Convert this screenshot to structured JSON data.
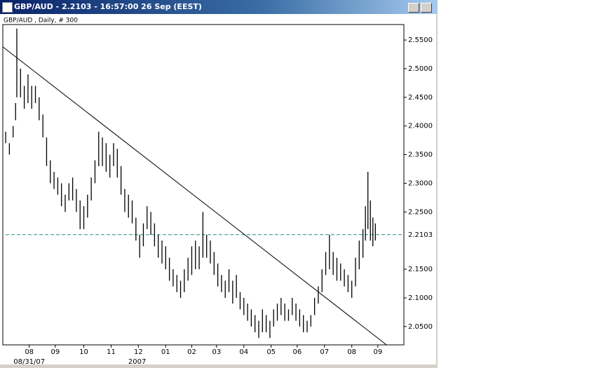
{
  "chart_data": {
    "type": "ohlc",
    "title": "GBP/AUD - 2.2103 - 16:57:00  26 Sep (EEST)",
    "subtitle": "GBP/AUD , Daily, # 300",
    "x": [
      0,
      3,
      6,
      8,
      9,
      12,
      15,
      18,
      21,
      24,
      27,
      30,
      33,
      36,
      39,
      42,
      45,
      48,
      51,
      54,
      57,
      60,
      63,
      66,
      69,
      72,
      75,
      78,
      81,
      84,
      87,
      90,
      93,
      96,
      99,
      102,
      105,
      108,
      111,
      114,
      117,
      120,
      123,
      126,
      129,
      132,
      135,
      138,
      141,
      144,
      147,
      150,
      153,
      156,
      159,
      162,
      165,
      168,
      171,
      174,
      177,
      180,
      183,
      186,
      189,
      192,
      195,
      198,
      201,
      204,
      207,
      210,
      213,
      216,
      219,
      222,
      225,
      228,
      231,
      234,
      237,
      240,
      243,
      246,
      249,
      252,
      255,
      258,
      261,
      264,
      267,
      270,
      273,
      276,
      279,
      282,
      285,
      288,
      290,
      292,
      294,
      296,
      298
    ],
    "high": [
      2.39,
      2.37,
      2.4,
      2.44,
      2.57,
      2.5,
      2.47,
      2.49,
      2.47,
      2.47,
      2.45,
      2.42,
      2.38,
      2.34,
      2.32,
      2.31,
      2.3,
      2.28,
      2.3,
      2.31,
      2.29,
      2.27,
      2.26,
      2.28,
      2.31,
      2.34,
      2.39,
      2.38,
      2.37,
      2.35,
      2.37,
      2.36,
      2.33,
      2.29,
      2.28,
      2.27,
      2.24,
      2.21,
      2.23,
      2.26,
      2.25,
      2.23,
      2.21,
      2.2,
      2.19,
      2.17,
      2.15,
      2.14,
      2.13,
      2.15,
      2.17,
      2.19,
      2.2,
      2.19,
      2.25,
      2.21,
      2.2,
      2.18,
      2.16,
      2.14,
      2.13,
      2.15,
      2.13,
      2.14,
      2.11,
      2.1,
      2.09,
      2.08,
      2.07,
      2.06,
      2.08,
      2.07,
      2.06,
      2.08,
      2.09,
      2.1,
      2.09,
      2.08,
      2.1,
      2.09,
      2.08,
      2.07,
      2.06,
      2.07,
      2.1,
      2.12,
      2.15,
      2.18,
      2.21,
      2.18,
      2.17,
      2.16,
      2.15,
      2.14,
      2.13,
      2.17,
      2.2,
      2.22,
      2.26,
      2.32,
      2.27,
      2.24,
      2.23
    ],
    "low": [
      2.37,
      2.35,
      2.38,
      2.41,
      2.45,
      2.45,
      2.43,
      2.44,
      2.43,
      2.44,
      2.41,
      2.38,
      2.33,
      2.3,
      2.29,
      2.28,
      2.26,
      2.25,
      2.27,
      2.27,
      2.25,
      2.22,
      2.22,
      2.24,
      2.27,
      2.3,
      2.33,
      2.33,
      2.32,
      2.31,
      2.33,
      2.31,
      2.28,
      2.25,
      2.24,
      2.23,
      2.2,
      2.17,
      2.19,
      2.22,
      2.21,
      2.19,
      2.17,
      2.16,
      2.15,
      2.13,
      2.12,
      2.11,
      2.1,
      2.11,
      2.13,
      2.14,
      2.15,
      2.15,
      2.17,
      2.17,
      2.16,
      2.14,
      2.12,
      2.11,
      2.1,
      2.11,
      2.09,
      2.1,
      2.08,
      2.07,
      2.06,
      2.05,
      2.04,
      2.03,
      2.04,
      2.04,
      2.03,
      2.05,
      2.06,
      2.07,
      2.06,
      2.06,
      2.07,
      2.06,
      2.05,
      2.04,
      2.04,
      2.05,
      2.07,
      2.09,
      2.11,
      2.14,
      2.15,
      2.14,
      2.13,
      2.13,
      2.12,
      2.11,
      2.1,
      2.12,
      2.15,
      2.17,
      2.2,
      2.22,
      2.2,
      2.19,
      2.2
    ],
    "color": "#000000",
    "xlim": [
      -2.3,
      321
    ],
    "xticks": [
      {
        "value": 19,
        "label": "08"
      },
      {
        "value": 40,
        "label": "09"
      },
      {
        "value": 63,
        "label": "10"
      },
      {
        "value": 85,
        "label": "11"
      },
      {
        "value": 107,
        "label": "12"
      },
      {
        "value": 129,
        "label": "01"
      },
      {
        "value": 150,
        "label": "02"
      },
      {
        "value": 170,
        "label": "03"
      },
      {
        "value": 192,
        "label": "04"
      },
      {
        "value": 214,
        "label": "05"
      },
      {
        "value": 235,
        "label": "06"
      },
      {
        "value": 257,
        "label": "07"
      },
      {
        "value": 279,
        "label": "08"
      },
      {
        "value": 300,
        "label": "09"
      }
    ],
    "xsublabels": [
      {
        "value": 19,
        "label": "08/31/07"
      },
      {
        "value": 106,
        "label": "2007"
      }
    ],
    "ylim": [
      2.018,
      2.577
    ],
    "yticks": [
      {
        "value": 2.05,
        "label": "2.0500"
      },
      {
        "value": 2.1,
        "label": "2.1000"
      },
      {
        "value": 2.15,
        "label": "2.1500"
      },
      {
        "value": 2.25,
        "label": "2.2500"
      },
      {
        "value": 2.3,
        "label": "2.3000"
      },
      {
        "value": 2.35,
        "label": "2.3500"
      },
      {
        "value": 2.4,
        "label": "2.4000"
      },
      {
        "value": 2.45,
        "label": "2.4500"
      },
      {
        "value": 2.5,
        "label": "2.5000"
      },
      {
        "value": 2.55,
        "label": "2.5500"
      }
    ],
    "current_price": {
      "value": 2.2103,
      "label": "2.2103",
      "color": "#2a8a8a"
    },
    "trendline": {
      "x": [
        -2.3,
        307
      ],
      "y": [
        2.538,
        2.018
      ]
    }
  }
}
